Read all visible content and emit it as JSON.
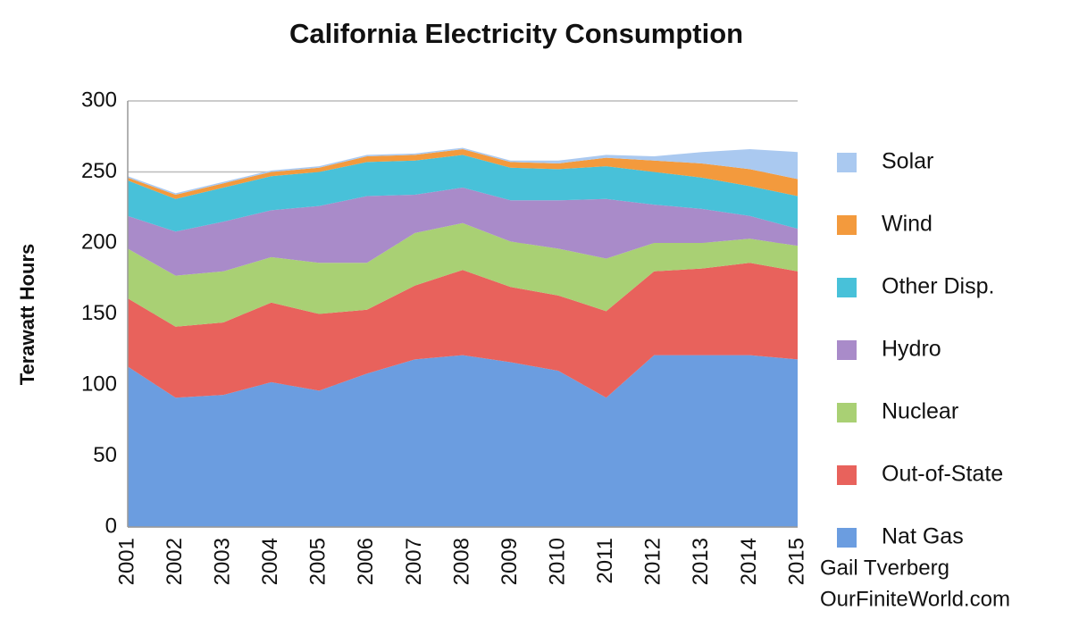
{
  "chart_data": {
    "type": "stacked_area",
    "title": "California Electricity Consumption",
    "y_label": "Terawatt Hours",
    "annotations": [
      "Gail Tverberg",
      "OurFiniteWorld.com"
    ],
    "categories": [
      "2001",
      "2002",
      "2003",
      "2004",
      "2005",
      "2006",
      "2007",
      "2008",
      "2009",
      "2010",
      "2011",
      "2012",
      "2013",
      "2014",
      "2015"
    ],
    "series": [
      {
        "name": "Nat Gas",
        "color": "#6b9de0",
        "values": [
          113,
          91,
          93,
          102,
          96,
          108,
          118,
          121,
          116,
          110,
          91,
          121,
          121,
          121,
          118
        ]
      },
      {
        "name": "Out-of-State",
        "color": "#e8625c",
        "values": [
          48,
          50,
          51,
          56,
          54,
          45,
          52,
          60,
          53,
          53,
          61,
          59,
          61,
          65,
          62
        ]
      },
      {
        "name": "Nuclear",
        "color": "#a9d074",
        "values": [
          35,
          36,
          36,
          32,
          36,
          33,
          37,
          33,
          32,
          33,
          37,
          20,
          18,
          17,
          18
        ]
      },
      {
        "name": "Hydro",
        "color": "#a98bc9",
        "values": [
          23,
          31,
          35,
          33,
          40,
          47,
          27,
          25,
          29,
          34,
          42,
          27,
          24,
          16,
          12
        ]
      },
      {
        "name": "Other Disp.",
        "color": "#48c1d9",
        "values": [
          25,
          23,
          24,
          24,
          24,
          24,
          24,
          23,
          23,
          22,
          23,
          23,
          22,
          21,
          23
        ]
      },
      {
        "name": "Wind",
        "color": "#f39a3d",
        "values": [
          2,
          3,
          3,
          3,
          3,
          4,
          4,
          4,
          4,
          4,
          6,
          8,
          10,
          12,
          12
        ]
      },
      {
        "name": "Solar",
        "color": "#aac9f0",
        "values": [
          1,
          1,
          1,
          1,
          1,
          1,
          1,
          1,
          1,
          2,
          2,
          3,
          8,
          14,
          19
        ]
      }
    ],
    "ylim": [
      0,
      300
    ],
    "yticks": [
      0,
      50,
      100,
      150,
      200,
      250,
      300
    ],
    "grid": true
  }
}
